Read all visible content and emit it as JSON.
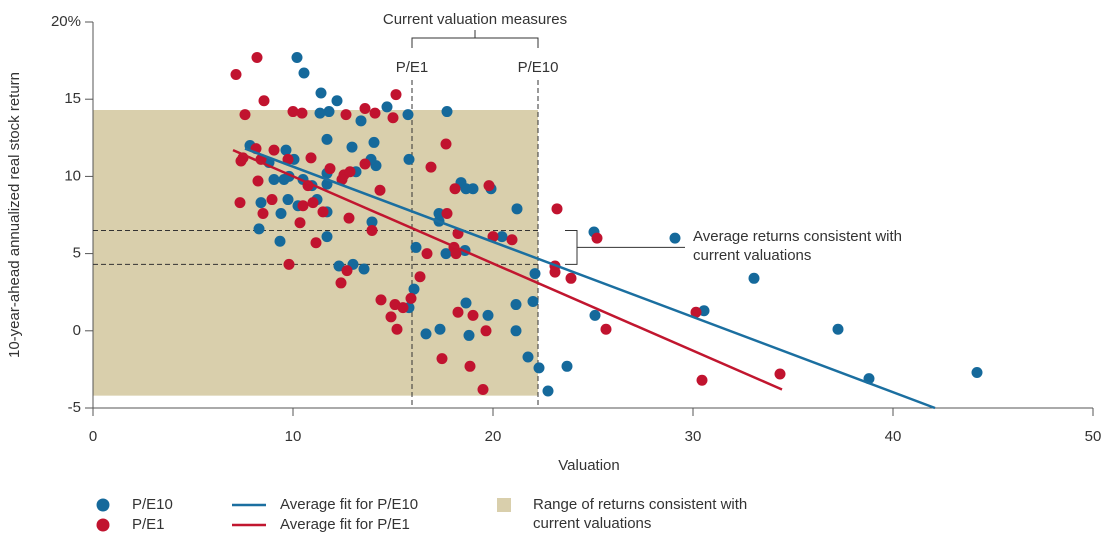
{
  "chart_data": {
    "type": "scatter",
    "xlabel": "Valuation",
    "ylabel": "10-year-ahead annualized real stock return",
    "xlim": [
      0,
      50
    ],
    "ylim": [
      -5,
      20
    ],
    "xticks": [
      0,
      10,
      20,
      30,
      40,
      50
    ],
    "yticks": [
      -5,
      0,
      5,
      10,
      15,
      {
        "value": 20,
        "label": "20%"
      }
    ],
    "series": [
      {
        "name": "P/E10",
        "type": "scatter",
        "color": "#15699b",
        "x": [
          10.2,
          10.55,
          11.4,
          12.2,
          11.8,
          11.35,
          14.7,
          15.75,
          17.7,
          13.4,
          15.8,
          11.7,
          12.95,
          14.05,
          14.15,
          13.9,
          7.85,
          9.65,
          8.8,
          10.05,
          9.8,
          9.55,
          10.5,
          10.95,
          11.7,
          13.15,
          11.7,
          9.05,
          8.4,
          9.75,
          10.25,
          9.4,
          11.2,
          11.7,
          8.3,
          9.35,
          11.7,
          13.95,
          12.3,
          13.0,
          13.55,
          18.4,
          17.3,
          18.65,
          19.0,
          19.9,
          17.3,
          16.15,
          17.65,
          18.6,
          20.45,
          21.2,
          16.05,
          15.8,
          18.65,
          18.8,
          19.75,
          21.15,
          22.0,
          21.15,
          17.35,
          16.65,
          21.75,
          22.3,
          22.75,
          23.7,
          22.1,
          25.1,
          25.05,
          29.1,
          30.55,
          33.05,
          37.25,
          38.8,
          44.2
        ],
        "values": [
          17.7,
          16.7,
          15.4,
          14.9,
          14.2,
          14.1,
          14.5,
          14.0,
          14.2,
          13.6,
          11.1,
          12.4,
          11.9,
          12.2,
          10.7,
          11.1,
          12.0,
          11.7,
          10.9,
          11.1,
          10.0,
          9.8,
          9.8,
          9.4,
          10.2,
          10.3,
          9.5,
          9.8,
          8.3,
          8.5,
          8.1,
          7.6,
          8.5,
          7.7,
          6.6,
          5.8,
          6.1,
          7.05,
          4.2,
          4.3,
          4.0,
          9.6,
          7.6,
          9.2,
          9.2,
          9.2,
          7.1,
          5.4,
          5.0,
          5.2,
          6.1,
          7.9,
          2.7,
          1.5,
          1.8,
          -0.3,
          1.0,
          1.7,
          1.9,
          0.0,
          0.1,
          -0.2,
          -1.7,
          -2.4,
          -3.9,
          -2.3,
          3.7,
          1.0,
          6.4,
          6.0,
          1.3,
          3.4,
          0.1,
          -3.1,
          -2.7
        ]
      },
      {
        "name": "P/E1",
        "type": "scatter",
        "color": "#c1132f",
        "x": [
          7.15,
          8.2,
          8.55,
          7.6,
          10.0,
          10.45,
          13.6,
          15.15,
          12.65,
          14.1,
          15.0,
          17.65,
          7.4,
          7.5,
          8.15,
          9.05,
          8.4,
          9.75,
          10.9,
          11.85,
          13.6,
          12.55,
          12.85,
          16.9,
          8.25,
          10.75,
          12.45,
          14.35,
          18.1,
          19.8,
          17.7,
          7.35,
          8.95,
          10.5,
          11.0,
          8.5,
          11.5,
          12.8,
          10.35,
          13.95,
          11.15,
          9.8,
          12.7,
          12.4,
          18.25,
          20.0,
          20.95,
          18.05,
          18.15,
          16.7,
          16.35,
          14.4,
          15.1,
          14.9,
          15.2,
          15.5,
          15.9,
          18.25,
          19.65,
          19.0,
          18.85,
          17.45,
          19.5,
          23.1,
          23.2,
          23.1,
          23.9,
          25.2,
          25.65,
          30.15,
          30.45,
          34.35
        ],
        "values": [
          16.6,
          17.7,
          14.9,
          14.0,
          14.2,
          14.1,
          14.4,
          15.3,
          14.0,
          14.1,
          13.8,
          12.1,
          11.0,
          11.2,
          11.8,
          11.7,
          11.1,
          11.1,
          11.2,
          10.5,
          10.8,
          10.1,
          10.3,
          10.6,
          9.7,
          9.4,
          9.8,
          9.1,
          9.2,
          9.4,
          7.6,
          8.3,
          8.5,
          8.1,
          8.3,
          7.6,
          7.7,
          7.3,
          7.0,
          6.5,
          5.7,
          4.3,
          3.9,
          3.1,
          6.3,
          6.1,
          5.9,
          5.4,
          5.0,
          5.0,
          3.5,
          2.0,
          1.7,
          0.9,
          0.1,
          1.5,
          2.1,
          1.2,
          0.0,
          1.0,
          -2.3,
          -1.8,
          -3.8,
          4.2,
          7.9,
          3.8,
          3.4,
          6.0,
          0.1,
          1.2,
          -3.2,
          -2.8
        ]
      },
      {
        "name": "Average fit for P/E10",
        "type": "line",
        "color": "#1b6fa0",
        "x": [
          7.6,
          42.1
        ],
        "values": [
          11.8,
          -5.0
        ]
      },
      {
        "name": "Average fit for P/E1",
        "type": "line",
        "color": "#c1162f",
        "x": [
          7.0,
          34.45
        ],
        "values": [
          11.7,
          -3.8
        ]
      }
    ],
    "range": {
      "name": "Range of returns consistent with current valuations",
      "color": "#d9cfac",
      "x": [
        0,
        22.25
      ],
      "y": [
        -4.2,
        14.3
      ]
    },
    "valuation_title": "Current valuation measures",
    "valuations": [
      {
        "label": "P/E1",
        "x": 15.95
      },
      {
        "label": "P/E10",
        "x": 22.25
      }
    ],
    "consistent": {
      "label": "Average returns consistent with current valuations",
      "values": [
        6.5,
        4.3
      ]
    }
  }
}
